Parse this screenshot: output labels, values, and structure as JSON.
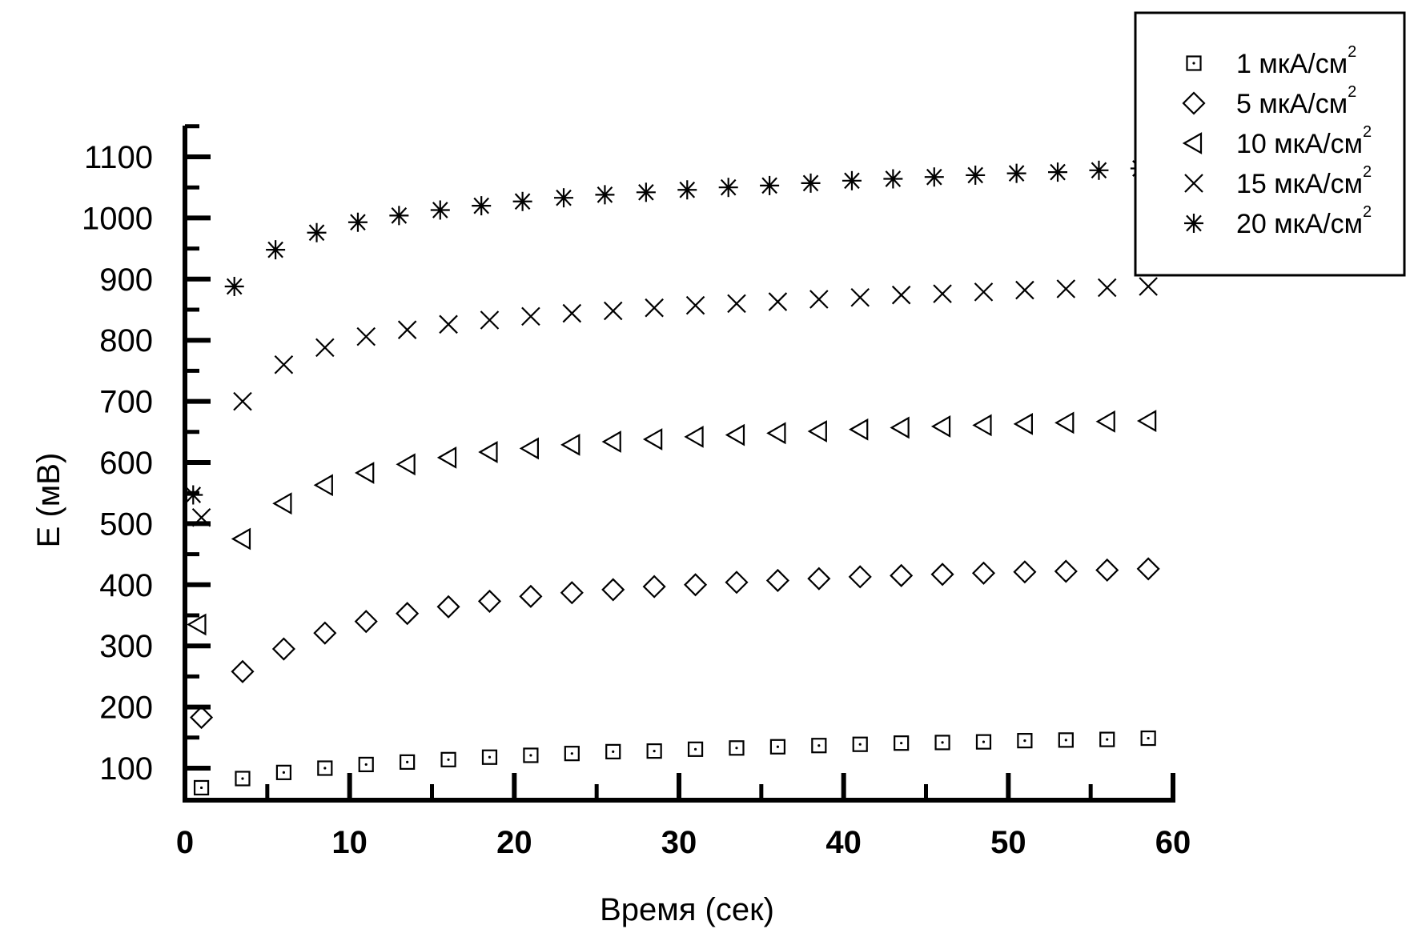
{
  "chart_data": {
    "type": "scatter",
    "xlabel": "Время (сек)",
    "ylabel": "E (мВ)",
    "xlim": [
      0,
      60
    ],
    "ylim": [
      55,
      1165
    ],
    "x_ticks": [
      "0",
      "10",
      "20",
      "30",
      "40",
      "50",
      "60"
    ],
    "y_ticks": [
      "100",
      "200",
      "300",
      "400",
      "500",
      "600",
      "700",
      "800",
      "900",
      "1000",
      "1100"
    ],
    "grid": false,
    "legend_position": "top-right",
    "series": [
      {
        "name": "1 мкА/см",
        "name_superscript": "2",
        "marker": "dotted-square",
        "x": [
          1.0,
          3.5,
          6.0,
          8.5,
          11.0,
          13.5,
          16.0,
          18.5,
          21.0,
          23.5,
          26.0,
          28.5,
          31.0,
          33.5,
          36.0,
          38.5,
          41.0,
          43.5,
          46.0,
          48.5,
          51.0,
          53.5,
          56.0,
          58.5
        ],
        "y": [
          68,
          83,
          93,
          100,
          106,
          110,
          114,
          118,
          121,
          124,
          127,
          128,
          131,
          133,
          135,
          137,
          139,
          141,
          142,
          143,
          145,
          146,
          147,
          149
        ]
      },
      {
        "name": "5 мкА/см",
        "name_superscript": "2",
        "marker": "diamond",
        "x": [
          1.0,
          3.5,
          6.0,
          8.5,
          11.0,
          13.5,
          16.0,
          18.5,
          21.0,
          23.5,
          26.0,
          28.5,
          31.0,
          33.5,
          36.0,
          38.5,
          41.0,
          43.5,
          46.0,
          48.5,
          51.0,
          53.5,
          56.0,
          58.5
        ],
        "y": [
          183,
          258,
          295,
          321,
          340,
          353,
          364,
          373,
          381,
          387,
          392,
          397,
          400,
          404,
          407,
          410,
          413,
          415,
          417,
          419,
          421,
          422,
          424,
          426
        ]
      },
      {
        "name": "10 мкА/см",
        "name_superscript": "2",
        "marker": "left-triangle",
        "x": [
          0.8,
          3.5,
          6.0,
          8.5,
          11.0,
          13.5,
          16.0,
          18.5,
          21.0,
          23.5,
          26.0,
          28.5,
          31.0,
          33.5,
          36.0,
          38.5,
          41.0,
          43.5,
          46.0,
          48.5,
          51.0,
          53.5,
          56.0,
          58.5
        ],
        "y": [
          335,
          475,
          533,
          563,
          583,
          597,
          608,
          617,
          623,
          629,
          634,
          638,
          642,
          645,
          648,
          651,
          654,
          657,
          659,
          661,
          663,
          665,
          667,
          668
        ]
      },
      {
        "name": "15 мкА/см",
        "name_superscript": "2",
        "marker": "cross",
        "x": [
          1.0,
          3.5,
          6.0,
          8.5,
          11.0,
          13.5,
          16.0,
          18.5,
          21.0,
          23.5,
          26.0,
          28.5,
          31.0,
          33.5,
          36.0,
          38.5,
          41.0,
          43.5,
          46.0,
          48.5,
          51.0,
          53.5,
          56.0,
          58.5
        ],
        "y": [
          510,
          700,
          760,
          788,
          806,
          817,
          826,
          833,
          839,
          844,
          848,
          853,
          857,
          860,
          863,
          867,
          870,
          874,
          876,
          879,
          882,
          884,
          886,
          888
        ]
      },
      {
        "name": "20 мкА/см",
        "name_superscript": "2",
        "marker": "star",
        "x": [
          0.5,
          3.0,
          5.5,
          8.0,
          10.5,
          13.0,
          15.5,
          18.0,
          20.5,
          23.0,
          25.5,
          28.0,
          30.5,
          33.0,
          35.5,
          38.0,
          40.5,
          43.0,
          45.5,
          48.0,
          50.5,
          53.0,
          55.5,
          58.0
        ],
        "y": [
          547,
          888,
          948,
          976,
          993,
          1004,
          1013,
          1020,
          1027,
          1033,
          1038,
          1042,
          1046,
          1050,
          1053,
          1057,
          1061,
          1064,
          1067,
          1070,
          1073,
          1075,
          1078,
          1081
        ]
      }
    ],
    "colors": {
      "marker": "#000000",
      "axis": "#000000",
      "background": "#ffffff"
    }
  }
}
